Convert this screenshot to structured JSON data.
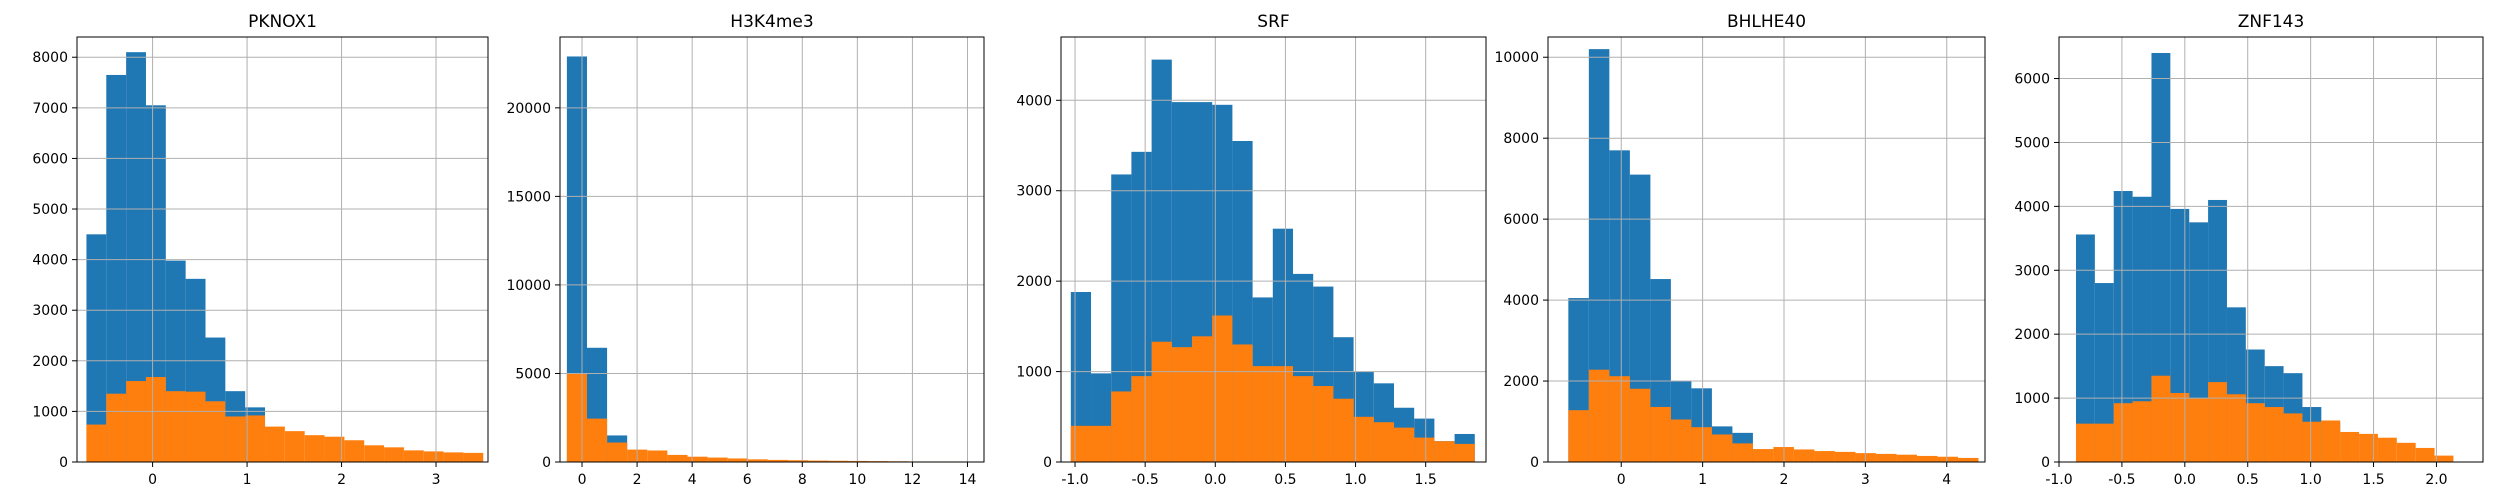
{
  "chart_data": [
    {
      "type": "bar",
      "title": "PKNOX1",
      "xlim": [
        -0.8,
        3.55
      ],
      "ylim": [
        0,
        8400
      ],
      "xticks": [
        0,
        1,
        2,
        3
      ],
      "yticks": [
        0,
        1000,
        2000,
        3000,
        4000,
        5000,
        6000,
        7000,
        8000
      ],
      "grid": true,
      "bin_start": -0.7,
      "bin_width": 0.21,
      "series": [
        {
          "color": "#1f77b4",
          "values": [
            4500,
            7650,
            8100,
            7050,
            3980,
            3620,
            2460,
            1400,
            1080,
            0,
            0,
            0,
            0,
            0,
            0,
            0,
            0,
            0,
            0,
            0
          ]
        },
        {
          "color": "#ff7f0e",
          "values": [
            740,
            1350,
            1600,
            1680,
            1400,
            1390,
            1200,
            900,
            920,
            700,
            610,
            530,
            500,
            430,
            330,
            290,
            230,
            210,
            190,
            180
          ]
        }
      ]
    },
    {
      "type": "bar",
      "title": "H3K4me3",
      "xlim": [
        -0.8,
        14.6
      ],
      "ylim": [
        0,
        24000
      ],
      "xticks": [
        0,
        2,
        4,
        6,
        8,
        10,
        12,
        14
      ],
      "yticks": [
        0,
        5000,
        10000,
        15000,
        20000
      ],
      "grid": true,
      "bin_start": -0.55,
      "bin_width": 0.73,
      "series": [
        {
          "color": "#1f77b4",
          "values": [
            22900,
            6450,
            1500,
            0,
            0,
            0,
            0,
            0,
            0,
            0,
            0,
            0,
            0,
            0,
            0,
            0,
            0,
            0,
            0,
            0
          ]
        },
        {
          "color": "#ff7f0e",
          "values": [
            5000,
            2450,
            1100,
            700,
            650,
            400,
            300,
            250,
            200,
            150,
            120,
            100,
            80,
            70,
            60,
            50,
            40,
            30,
            30,
            30
          ]
        }
      ]
    },
    {
      "type": "bar",
      "title": "SRF",
      "xlim": [
        -1.1,
        1.93
      ],
      "ylim": [
        0,
        4700
      ],
      "xticks": [
        -1.0,
        -0.5,
        0.0,
        0.5,
        1.0,
        1.5
      ],
      "yticks": [
        0,
        1000,
        2000,
        3000,
        4000
      ],
      "grid": true,
      "bin_start": -1.03,
      "bin_width": 0.144,
      "series": [
        {
          "color": "#1f77b4",
          "values": [
            1880,
            980,
            3180,
            3430,
            4450,
            3980,
            3980,
            3950,
            3550,
            1820,
            2580,
            2080,
            1940,
            1380,
            1000,
            870,
            600,
            480,
            230,
            310
          ]
        },
        {
          "color": "#ff7f0e",
          "values": [
            400,
            400,
            780,
            950,
            1330,
            1270,
            1390,
            1620,
            1300,
            1060,
            1060,
            950,
            840,
            700,
            500,
            440,
            380,
            270,
            230,
            200
          ]
        }
      ]
    },
    {
      "type": "bar",
      "title": "BHLHE40",
      "xlim": [
        -0.9,
        4.47
      ],
      "ylim": [
        0,
        10500
      ],
      "xticks": [
        0,
        1,
        2,
        3,
        4
      ],
      "yticks": [
        0,
        2000,
        4000,
        6000,
        8000,
        10000
      ],
      "grid": true,
      "bin_start": -0.65,
      "bin_width": 0.252,
      "series": [
        {
          "color": "#1f77b4",
          "values": [
            4050,
            10200,
            7700,
            7100,
            4520,
            2000,
            1820,
            880,
            720,
            0,
            0,
            0,
            0,
            0,
            0,
            0,
            0,
            0,
            0,
            0
          ]
        },
        {
          "color": "#ff7f0e",
          "values": [
            1280,
            2280,
            2120,
            1810,
            1360,
            1050,
            860,
            680,
            460,
            320,
            370,
            310,
            270,
            250,
            220,
            200,
            180,
            150,
            130,
            100
          ]
        }
      ]
    },
    {
      "type": "bar",
      "title": "ZNF143",
      "xlim": [
        -1.0,
        2.37
      ],
      "ylim": [
        0,
        6650
      ],
      "xticks": [
        -1.0,
        -0.5,
        0.0,
        0.5,
        1.0,
        1.5,
        2.0
      ],
      "yticks": [
        0,
        1000,
        2000,
        3000,
        4000,
        5000,
        6000
      ],
      "grid": true,
      "bin_start": -0.865,
      "bin_width": 0.15,
      "series": [
        {
          "color": "#1f77b4",
          "values": [
            3560,
            2800,
            4240,
            4150,
            6400,
            3960,
            3750,
            4100,
            2420,
            1760,
            1500,
            1390,
            860,
            630,
            0,
            0,
            0,
            0,
            0,
            0
          ]
        },
        {
          "color": "#ff7f0e",
          "values": [
            600,
            600,
            920,
            950,
            1350,
            1080,
            1000,
            1250,
            1060,
            920,
            860,
            760,
            630,
            650,
            470,
            440,
            380,
            300,
            220,
            100
          ]
        }
      ]
    }
  ]
}
